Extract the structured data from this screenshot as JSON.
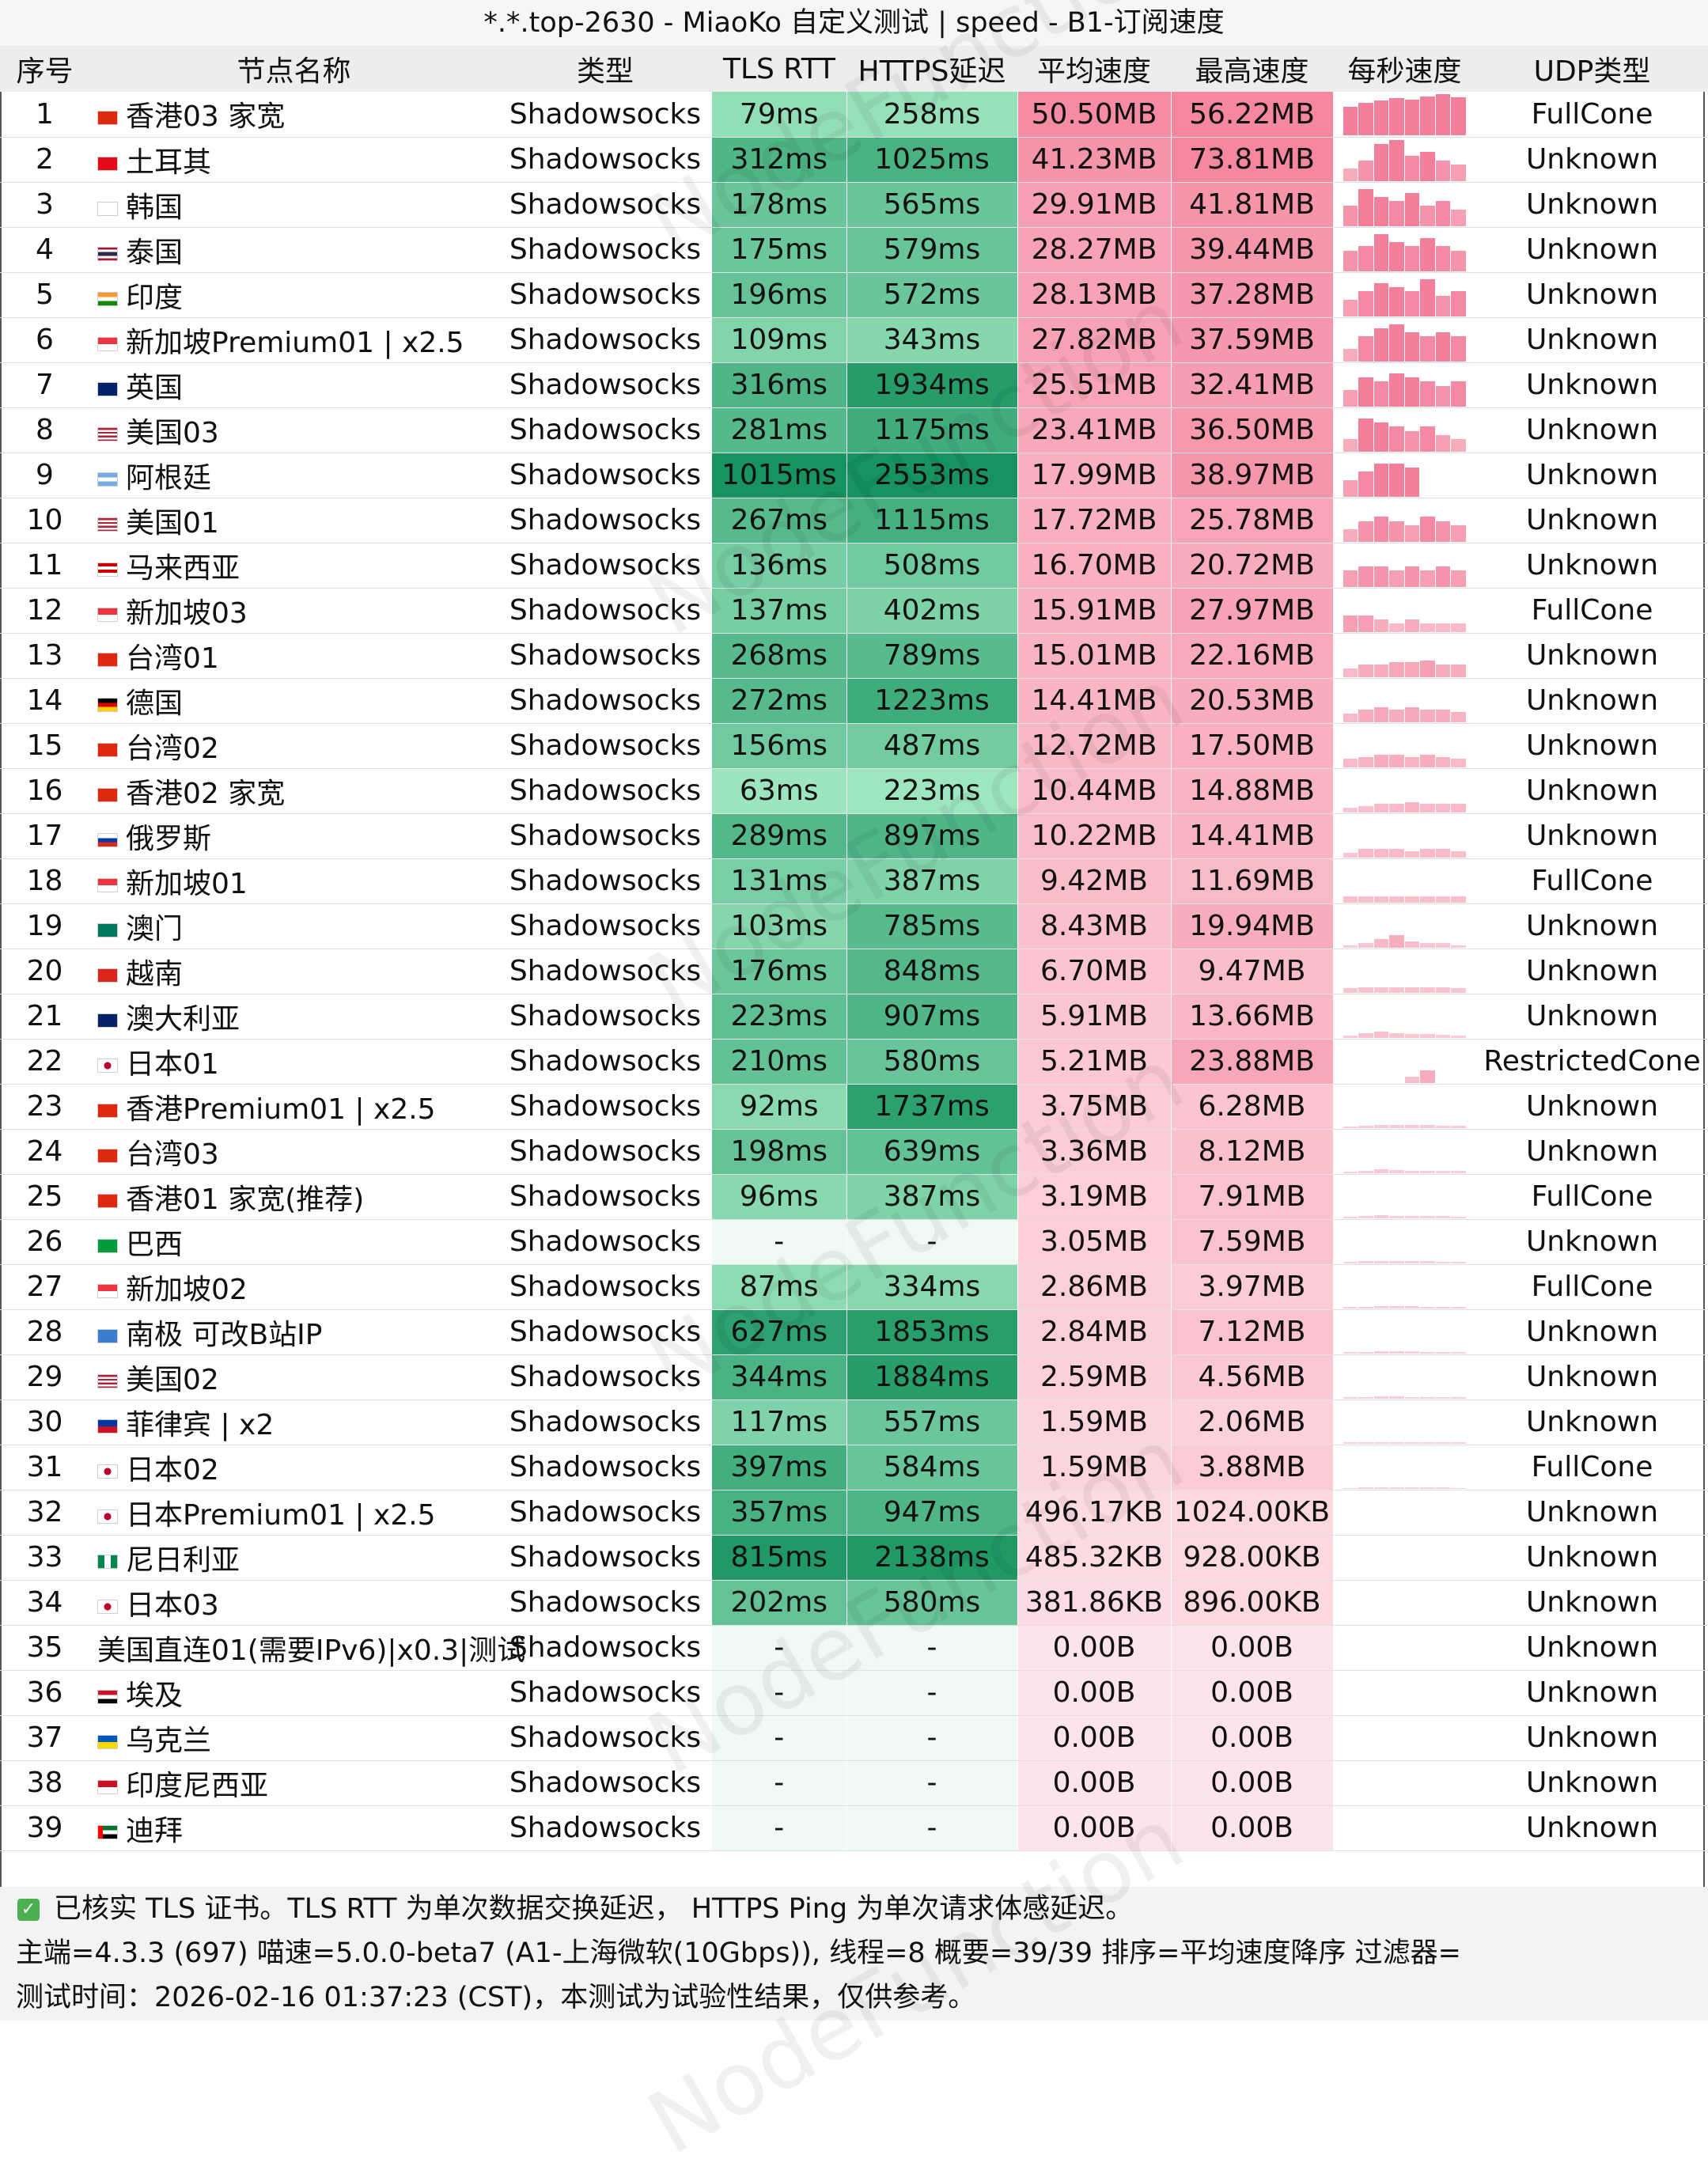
{
  "title": "*.*.top-2630 - MiaoKo 自定义测试 | speed - B1-订阅速度",
  "watermark": "NodeFunction",
  "columns": [
    "序号",
    "节点名称",
    "类型",
    "TLS RTT",
    "HTTPS延迟",
    "平均速度",
    "最高速度",
    "每秒速度",
    "UDP类型"
  ],
  "rows": [
    {
      "no": "1",
      "flag": "hk",
      "name": "香港03 家宽",
      "type": "Shadowsocks",
      "rtt": "79ms",
      "https": "258ms",
      "avg": "50.50MB",
      "max": "56.22MB",
      "udp": "FullCone",
      "rtt_v": 79,
      "https_v": 258,
      "avg_v": 50.5,
      "max_v": 56.22,
      "spark": [
        0.7,
        0.8,
        0.85,
        0.9,
        0.88,
        0.95,
        1.0,
        0.92
      ]
    },
    {
      "no": "2",
      "flag": "tr",
      "name": "土耳其",
      "type": "Shadowsocks",
      "rtt": "312ms",
      "https": "1025ms",
      "avg": "41.23MB",
      "max": "73.81MB",
      "udp": "Unknown",
      "rtt_v": 312,
      "https_v": 1025,
      "avg_v": 41.23,
      "max_v": 73.81,
      "spark": [
        0.3,
        0.5,
        0.9,
        1.0,
        0.6,
        0.7,
        0.5,
        0.4
      ]
    },
    {
      "no": "3",
      "flag": "kr",
      "name": "韩国",
      "type": "Shadowsocks",
      "rtt": "178ms",
      "https": "565ms",
      "avg": "29.91MB",
      "max": "41.81MB",
      "udp": "Unknown",
      "rtt_v": 178,
      "https_v": 565,
      "avg_v": 29.91,
      "max_v": 41.81,
      "spark": [
        0.5,
        0.9,
        0.7,
        0.6,
        0.8,
        0.5,
        0.6,
        0.4
      ]
    },
    {
      "no": "4",
      "flag": "th",
      "name": "泰国",
      "type": "Shadowsocks",
      "rtt": "175ms",
      "https": "579ms",
      "avg": "28.27MB",
      "max": "39.44MB",
      "udp": "Unknown",
      "rtt_v": 175,
      "https_v": 579,
      "avg_v": 28.27,
      "max_v": 39.44,
      "spark": [
        0.5,
        0.6,
        0.9,
        0.7,
        0.6,
        0.8,
        0.6,
        0.5
      ]
    },
    {
      "no": "5",
      "flag": "in",
      "name": "印度",
      "type": "Shadowsocks",
      "rtt": "196ms",
      "https": "572ms",
      "avg": "28.13MB",
      "max": "37.28MB",
      "udp": "Unknown",
      "rtt_v": 196,
      "https_v": 572,
      "avg_v": 28.13,
      "max_v": 37.28,
      "spark": [
        0.4,
        0.6,
        0.8,
        0.7,
        0.6,
        0.9,
        0.5,
        0.6
      ]
    },
    {
      "no": "6",
      "flag": "sg",
      "name": "新加坡Premium01 | x2.5",
      "type": "Shadowsocks",
      "rtt": "109ms",
      "https": "343ms",
      "avg": "27.82MB",
      "max": "37.59MB",
      "udp": "Unknown",
      "rtt_v": 109,
      "https_v": 343,
      "avg_v": 27.82,
      "max_v": 37.59,
      "spark": [
        0.3,
        0.6,
        0.8,
        0.9,
        0.7,
        0.6,
        0.7,
        0.6
      ]
    },
    {
      "no": "7",
      "flag": "gb",
      "name": "英国",
      "type": "Shadowsocks",
      "rtt": "316ms",
      "https": "1934ms",
      "avg": "25.51MB",
      "max": "32.41MB",
      "udp": "Unknown",
      "rtt_v": 316,
      "https_v": 1934,
      "avg_v": 25.51,
      "max_v": 32.41,
      "spark": [
        0.4,
        0.7,
        0.6,
        0.8,
        0.7,
        0.6,
        0.5,
        0.6
      ]
    },
    {
      "no": "8",
      "flag": "us",
      "name": "美国03",
      "type": "Shadowsocks",
      "rtt": "281ms",
      "https": "1175ms",
      "avg": "23.41MB",
      "max": "36.50MB",
      "udp": "Unknown",
      "rtt_v": 281,
      "https_v": 1175,
      "avg_v": 23.41,
      "max_v": 36.5,
      "spark": [
        0.3,
        0.8,
        0.7,
        0.6,
        0.5,
        0.6,
        0.4,
        0.3
      ]
    },
    {
      "no": "9",
      "flag": "ar",
      "name": "阿根廷",
      "type": "Shadowsocks",
      "rtt": "1015ms",
      "https": "2553ms",
      "avg": "17.99MB",
      "max": "38.97MB",
      "udp": "Unknown",
      "rtt_v": 1015,
      "https_v": 2553,
      "avg_v": 17.99,
      "max_v": 38.97,
      "spark": [
        0.4,
        0.6,
        0.8,
        0.8,
        0.7,
        0.0,
        0.0,
        0.0
      ]
    },
    {
      "no": "10",
      "flag": "us",
      "name": "美国01",
      "type": "Shadowsocks",
      "rtt": "267ms",
      "https": "1115ms",
      "avg": "17.72MB",
      "max": "25.78MB",
      "udp": "Unknown",
      "rtt_v": 267,
      "https_v": 1115,
      "avg_v": 17.72,
      "max_v": 25.78,
      "spark": [
        0.3,
        0.5,
        0.6,
        0.5,
        0.4,
        0.6,
        0.5,
        0.4
      ]
    },
    {
      "no": "11",
      "flag": "my",
      "name": "马来西亚",
      "type": "Shadowsocks",
      "rtt": "136ms",
      "https": "508ms",
      "avg": "16.70MB",
      "max": "20.72MB",
      "udp": "Unknown",
      "rtt_v": 136,
      "https_v": 508,
      "avg_v": 16.7,
      "max_v": 20.72,
      "spark": [
        0.4,
        0.5,
        0.5,
        0.4,
        0.5,
        0.4,
        0.5,
        0.4
      ]
    },
    {
      "no": "12",
      "flag": "sg",
      "name": "新加坡03",
      "type": "Shadowsocks",
      "rtt": "137ms",
      "https": "402ms",
      "avg": "15.91MB",
      "max": "27.97MB",
      "udp": "FullCone",
      "rtt_v": 137,
      "https_v": 402,
      "avg_v": 15.91,
      "max_v": 27.97,
      "spark": [
        0.4,
        0.4,
        0.3,
        0.2,
        0.3,
        0.2,
        0.2,
        0.2
      ]
    },
    {
      "no": "13",
      "flag": "cn",
      "name": "台湾01",
      "type": "Shadowsocks",
      "rtt": "268ms",
      "https": "789ms",
      "avg": "15.01MB",
      "max": "22.16MB",
      "udp": "Unknown",
      "rtt_v": 268,
      "https_v": 789,
      "avg_v": 15.01,
      "max_v": 22.16,
      "spark": [
        0.2,
        0.3,
        0.3,
        0.35,
        0.35,
        0.4,
        0.3,
        0.3
      ]
    },
    {
      "no": "14",
      "flag": "de",
      "name": "德国",
      "type": "Shadowsocks",
      "rtt": "272ms",
      "https": "1223ms",
      "avg": "14.41MB",
      "max": "20.53MB",
      "udp": "Unknown",
      "rtt_v": 272,
      "https_v": 1223,
      "avg_v": 14.41,
      "max_v": 20.53,
      "spark": [
        0.2,
        0.3,
        0.35,
        0.3,
        0.35,
        0.3,
        0.3,
        0.25
      ]
    },
    {
      "no": "15",
      "flag": "cn",
      "name": "台湾02",
      "type": "Shadowsocks",
      "rtt": "156ms",
      "https": "487ms",
      "avg": "12.72MB",
      "max": "17.50MB",
      "udp": "Unknown",
      "rtt_v": 156,
      "https_v": 487,
      "avg_v": 12.72,
      "max_v": 17.5,
      "spark": [
        0.2,
        0.25,
        0.3,
        0.3,
        0.25,
        0.3,
        0.25,
        0.2
      ]
    },
    {
      "no": "16",
      "flag": "hk",
      "name": "香港02 家宽",
      "type": "Shadowsocks",
      "rtt": "63ms",
      "https": "223ms",
      "avg": "10.44MB",
      "max": "14.88MB",
      "udp": "Unknown",
      "rtt_v": 63,
      "https_v": 223,
      "avg_v": 10.44,
      "max_v": 14.88,
      "spark": [
        0.1,
        0.15,
        0.2,
        0.2,
        0.25,
        0.2,
        0.2,
        0.2
      ]
    },
    {
      "no": "17",
      "flag": "ru",
      "name": "俄罗斯",
      "type": "Shadowsocks",
      "rtt": "289ms",
      "https": "897ms",
      "avg": "10.22MB",
      "max": "14.41MB",
      "udp": "Unknown",
      "rtt_v": 289,
      "https_v": 897,
      "avg_v": 10.22,
      "max_v": 14.41,
      "spark": [
        0.1,
        0.2,
        0.2,
        0.2,
        0.15,
        0.2,
        0.2,
        0.15
      ]
    },
    {
      "no": "18",
      "flag": "sg",
      "name": "新加坡01",
      "type": "Shadowsocks",
      "rtt": "131ms",
      "https": "387ms",
      "avg": "9.42MB",
      "max": "11.69MB",
      "udp": "FullCone",
      "rtt_v": 131,
      "https_v": 387,
      "avg_v": 9.42,
      "max_v": 11.69,
      "spark": [
        0.15,
        0.15,
        0.15,
        0.15,
        0.15,
        0.15,
        0.15,
        0.15
      ]
    },
    {
      "no": "19",
      "flag": "mo",
      "name": "澳门",
      "type": "Shadowsocks",
      "rtt": "103ms",
      "https": "785ms",
      "avg": "8.43MB",
      "max": "19.94MB",
      "udp": "Unknown",
      "rtt_v": 103,
      "https_v": 785,
      "avg_v": 8.43,
      "max_v": 19.94,
      "spark": [
        0.05,
        0.1,
        0.2,
        0.3,
        0.15,
        0.1,
        0.1,
        0.05
      ]
    },
    {
      "no": "20",
      "flag": "vn",
      "name": "越南",
      "type": "Shadowsocks",
      "rtt": "176ms",
      "https": "848ms",
      "avg": "6.70MB",
      "max": "9.47MB",
      "udp": "Unknown",
      "rtt_v": 176,
      "https_v": 848,
      "avg_v": 6.7,
      "max_v": 9.47,
      "spark": [
        0.1,
        0.12,
        0.12,
        0.12,
        0.12,
        0.12,
        0.12,
        0.1
      ]
    },
    {
      "no": "21",
      "flag": "au",
      "name": "澳大利亚",
      "type": "Shadowsocks",
      "rtt": "223ms",
      "https": "907ms",
      "avg": "5.91MB",
      "max": "13.66MB",
      "udp": "Unknown",
      "rtt_v": 223,
      "https_v": 907,
      "avg_v": 5.91,
      "max_v": 13.66,
      "spark": [
        0.05,
        0.1,
        0.15,
        0.1,
        0.08,
        0.08,
        0.06,
        0.05
      ]
    },
    {
      "no": "22",
      "flag": "jp",
      "name": "日本01",
      "type": "Shadowsocks",
      "rtt": "210ms",
      "https": "580ms",
      "avg": "5.21MB",
      "max": "23.88MB",
      "udp": "RestrictedCone",
      "rtt_v": 210,
      "https_v": 580,
      "avg_v": 5.21,
      "max_v": 23.88,
      "spark": [
        0.0,
        0.0,
        0.0,
        0.0,
        0.15,
        0.3,
        0.0,
        0.0
      ]
    },
    {
      "no": "23",
      "flag": "hk",
      "name": "香港Premium01 | x2.5",
      "type": "Shadowsocks",
      "rtt": "92ms",
      "https": "1737ms",
      "avg": "3.75MB",
      "max": "6.28MB",
      "udp": "Unknown",
      "rtt_v": 92,
      "https_v": 1737,
      "avg_v": 3.75,
      "max_v": 6.28,
      "spark": [
        0.03,
        0.05,
        0.06,
        0.06,
        0.06,
        0.06,
        0.05,
        0.05
      ]
    },
    {
      "no": "24",
      "flag": "cn",
      "name": "台湾03",
      "type": "Shadowsocks",
      "rtt": "198ms",
      "https": "639ms",
      "avg": "3.36MB",
      "max": "8.12MB",
      "udp": "Unknown",
      "rtt_v": 198,
      "https_v": 639,
      "avg_v": 3.36,
      "max_v": 8.12,
      "spark": [
        0.03,
        0.05,
        0.08,
        0.06,
        0.05,
        0.05,
        0.04,
        0.04
      ]
    },
    {
      "no": "25",
      "flag": "hk",
      "name": "香港01 家宽(推荐)",
      "type": "Shadowsocks",
      "rtt": "96ms",
      "https": "387ms",
      "avg": "3.19MB",
      "max": "7.91MB",
      "udp": "FullCone",
      "rtt_v": 96,
      "https_v": 387,
      "avg_v": 3.19,
      "max_v": 7.91,
      "spark": [
        0.02,
        0.04,
        0.06,
        0.05,
        0.05,
        0.04,
        0.04,
        0.03
      ]
    },
    {
      "no": "26",
      "flag": "br",
      "name": "巴西",
      "type": "Shadowsocks",
      "rtt": "-",
      "https": "-",
      "avg": "3.05MB",
      "max": "7.59MB",
      "udp": "Unknown",
      "rtt_v": null,
      "https_v": null,
      "avg_v": 3.05,
      "max_v": 7.59,
      "spark": [
        0.02,
        0.04,
        0.05,
        0.05,
        0.04,
        0.04,
        0.03,
        0.03
      ]
    },
    {
      "no": "27",
      "flag": "sg",
      "name": "新加坡02",
      "type": "Shadowsocks",
      "rtt": "87ms",
      "https": "334ms",
      "avg": "2.86MB",
      "max": "3.97MB",
      "udp": "FullCone",
      "rtt_v": 87,
      "https_v": 334,
      "avg_v": 2.86,
      "max_v": 3.97,
      "spark": [
        0.03,
        0.03,
        0.04,
        0.04,
        0.04,
        0.03,
        0.03,
        0.03
      ]
    },
    {
      "no": "28",
      "flag": "aq",
      "name": "南极 可改B站IP",
      "type": "Shadowsocks",
      "rtt": "627ms",
      "https": "1853ms",
      "avg": "2.84MB",
      "max": "7.12MB",
      "udp": "Unknown",
      "rtt_v": 627,
      "https_v": 1853,
      "avg_v": 2.84,
      "max_v": 7.12,
      "spark": [
        0.02,
        0.03,
        0.05,
        0.04,
        0.04,
        0.03,
        0.03,
        0.02
      ]
    },
    {
      "no": "29",
      "flag": "us",
      "name": "美国02",
      "type": "Shadowsocks",
      "rtt": "344ms",
      "https": "1884ms",
      "avg": "2.59MB",
      "max": "4.56MB",
      "udp": "Unknown",
      "rtt_v": 344,
      "https_v": 1884,
      "avg_v": 2.59,
      "max_v": 4.56,
      "spark": [
        0.02,
        0.03,
        0.04,
        0.04,
        0.03,
        0.03,
        0.03,
        0.02
      ]
    },
    {
      "no": "30",
      "flag": "ph",
      "name": "菲律宾 | x2",
      "type": "Shadowsocks",
      "rtt": "117ms",
      "https": "557ms",
      "avg": "1.59MB",
      "max": "2.06MB",
      "udp": "Unknown",
      "rtt_v": 117,
      "https_v": 557,
      "avg_v": 1.59,
      "max_v": 2.06,
      "spark": [
        0.02,
        0.02,
        0.02,
        0.02,
        0.02,
        0.02,
        0.02,
        0.02
      ]
    },
    {
      "no": "31",
      "flag": "jp",
      "name": "日本02",
      "type": "Shadowsocks",
      "rtt": "397ms",
      "https": "584ms",
      "avg": "1.59MB",
      "max": "3.88MB",
      "udp": "FullCone",
      "rtt_v": 397,
      "https_v": 584,
      "avg_v": 1.59,
      "max_v": 3.88,
      "spark": [
        0.01,
        0.02,
        0.03,
        0.02,
        0.02,
        0.02,
        0.02,
        0.01
      ]
    },
    {
      "no": "32",
      "flag": "jp",
      "name": "日本Premium01 | x2.5",
      "type": "Shadowsocks",
      "rtt": "357ms",
      "https": "947ms",
      "avg": "496.17KB",
      "max": "1024.00KB",
      "udp": "Unknown",
      "rtt_v": 357,
      "https_v": 947,
      "avg_v": 0.48,
      "max_v": 1.0,
      "spark": [
        0.0,
        0.0,
        0.0,
        0.0,
        0.0,
        0.0,
        0.0,
        0.0
      ]
    },
    {
      "no": "33",
      "flag": "ng",
      "name": "尼日利亚",
      "type": "Shadowsocks",
      "rtt": "815ms",
      "https": "2138ms",
      "avg": "485.32KB",
      "max": "928.00KB",
      "udp": "Unknown",
      "rtt_v": 815,
      "https_v": 2138,
      "avg_v": 0.47,
      "max_v": 0.91,
      "spark": [
        0.0,
        0.0,
        0.0,
        0.0,
        0.0,
        0.0,
        0.0,
        0.0
      ]
    },
    {
      "no": "34",
      "flag": "jp",
      "name": "日本03",
      "type": "Shadowsocks",
      "rtt": "202ms",
      "https": "580ms",
      "avg": "381.86KB",
      "max": "896.00KB",
      "udp": "Unknown",
      "rtt_v": 202,
      "https_v": 580,
      "avg_v": 0.37,
      "max_v": 0.88,
      "spark": [
        0.0,
        0.0,
        0.0,
        0.0,
        0.0,
        0.0,
        0.0,
        0.0
      ]
    },
    {
      "no": "35",
      "flag": "",
      "name": "美国直连01(需要IPv6)|x0.3|测试",
      "type": "Shadowsocks",
      "rtt": "-",
      "https": "-",
      "avg": "0.00B",
      "max": "0.00B",
      "udp": "Unknown",
      "rtt_v": null,
      "https_v": null,
      "avg_v": 0,
      "max_v": 0,
      "spark": []
    },
    {
      "no": "36",
      "flag": "eg",
      "name": "埃及",
      "type": "Shadowsocks",
      "rtt": "-",
      "https": "-",
      "avg": "0.00B",
      "max": "0.00B",
      "udp": "Unknown",
      "rtt_v": null,
      "https_v": null,
      "avg_v": 0,
      "max_v": 0,
      "spark": []
    },
    {
      "no": "37",
      "flag": "ua",
      "name": "乌克兰",
      "type": "Shadowsocks",
      "rtt": "-",
      "https": "-",
      "avg": "0.00B",
      "max": "0.00B",
      "udp": "Unknown",
      "rtt_v": null,
      "https_v": null,
      "avg_v": 0,
      "max_v": 0,
      "spark": []
    },
    {
      "no": "38",
      "flag": "id",
      "name": "印度尼西亚",
      "type": "Shadowsocks",
      "rtt": "-",
      "https": "-",
      "avg": "0.00B",
      "max": "0.00B",
      "udp": "Unknown",
      "rtt_v": null,
      "https_v": null,
      "avg_v": 0,
      "max_v": 0,
      "spark": []
    },
    {
      "no": "39",
      "flag": "ae",
      "name": "迪拜",
      "type": "Shadowsocks",
      "rtt": "-",
      "https": "-",
      "avg": "0.00B",
      "max": "0.00B",
      "udp": "Unknown",
      "rtt_v": null,
      "https_v": null,
      "avg_v": 0,
      "max_v": 0,
      "spark": []
    }
  ],
  "footer": {
    "line1": "已核实 TLS 证书。TLS RTT 为单次数据交换延迟， HTTPS Ping 为单次请求体感延迟。",
    "line2": "主端=4.3.3 (697) 喵速=5.0.0-beta7 (A1-上海微软(10Gbps)), 线程=8 概要=39/39 排序=平均速度降序 过滤器=",
    "line3": "测试时间：2026-02-16 01:37:23 (CST)，本测试为试验性结果，仅供参考。"
  },
  "colors": {
    "header_bg": "#ededed",
    "rtt_light": "#9fe6c0",
    "rtt_dark": "#16935e",
    "speed_light": "#fde4ea",
    "speed_dark": "#f5879f",
    "spark": "#f47f9b",
    "check": "#4caf50"
  }
}
